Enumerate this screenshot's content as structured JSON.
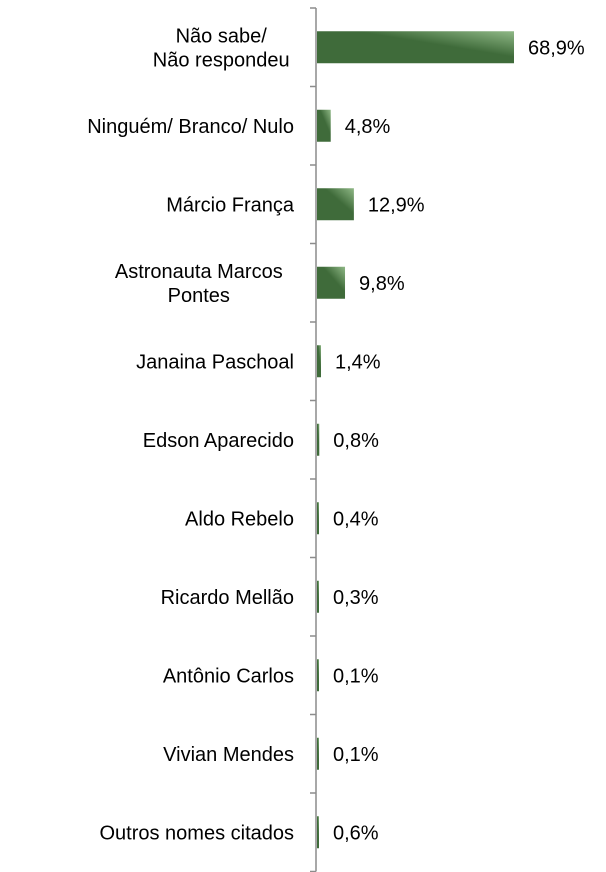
{
  "chart_data": {
    "type": "bar",
    "orientation": "horizontal",
    "title": "",
    "xlabel": "",
    "ylabel": "",
    "categories": [
      [
        "Não sabe/",
        "Não respondeu"
      ],
      [
        "Ninguém/ Branco/ Nulo"
      ],
      [
        "Márcio França"
      ],
      [
        "Astronauta Marcos",
        "Pontes"
      ],
      [
        "Janaina Paschoal"
      ],
      [
        "Edson Aparecido"
      ],
      [
        "Aldo Rebelo"
      ],
      [
        "Ricardo Mellão"
      ],
      [
        "Antônio Carlos"
      ],
      [
        "Vivian Mendes"
      ],
      [
        "Outros nomes citados"
      ]
    ],
    "values": [
      68.9,
      4.8,
      12.9,
      9.8,
      1.4,
      0.8,
      0.4,
      0.3,
      0.1,
      0.1,
      0.6
    ],
    "value_labels": [
      "68,9%",
      "4,8%",
      "12,9%",
      "9,8%",
      "1,4%",
      "0,8%",
      "0,4%",
      "0,3%",
      "0,1%",
      "0,1%",
      "0,6%"
    ],
    "xlim": [
      0,
      100
    ],
    "grid": false,
    "legend": "none",
    "colors": {
      "bar_dark": "#3f6b3a",
      "bar_light": "#8fb886",
      "axis": "#8c8c8c"
    }
  }
}
